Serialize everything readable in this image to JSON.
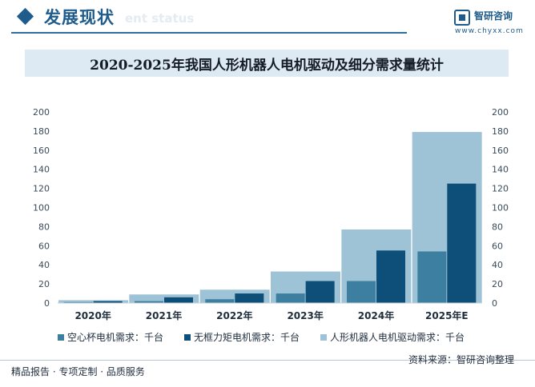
{
  "header": {
    "section_title": "发展现状",
    "section_ghost": "ent status",
    "logo_name": "智研咨询",
    "logo_site": "www.chyxx.com"
  },
  "footer": {
    "left": "精品报告 · 专项定制 · 品质服务",
    "source": "资料来源：智研咨询整理"
  },
  "colors": {
    "accent": "#1f5c8b",
    "title_bar": "#dde9f3"
  },
  "chart_data": {
    "type": "bar",
    "title": "2020-2025年我国人形机器人电机驱动及细分需求量统计",
    "categories": [
      "2020年",
      "2021年",
      "2022年",
      "2023年",
      "2024年",
      "2025年E"
    ],
    "ylim": [
      0,
      200
    ],
    "yticks": [
      0,
      20,
      40,
      60,
      80,
      100,
      120,
      140,
      160,
      180,
      200
    ],
    "grid": false,
    "legend_position": "bottom",
    "series": [
      {
        "name": "空心杯电机需求：千台",
        "color": "#3d7fa0",
        "values": [
          1,
          2,
          4,
          10,
          23,
          54
        ]
      },
      {
        "name": "无框力矩电机需求：千台",
        "color": "#0d4f78",
        "values": [
          2,
          6,
          10,
          23,
          55,
          125
        ]
      },
      {
        "name": "人形机器人电机驱动需求：千台",
        "color": "#9ec3d6",
        "values": [
          3,
          9,
          14,
          33,
          77,
          179
        ]
      }
    ]
  }
}
